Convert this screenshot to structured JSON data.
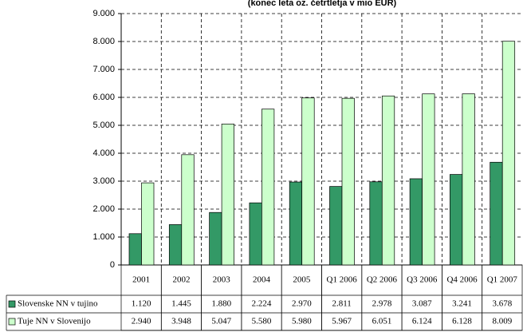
{
  "chart_data": {
    "type": "bar",
    "subtitle": "(konec leta oz. četrtletja v mio EUR)",
    "categories": [
      "2001",
      "2002",
      "2003",
      "2004",
      "2005",
      "Q1 2006",
      "Q2 2006",
      "Q3 2006",
      "Q4 2006",
      "Q1 2007"
    ],
    "series": [
      {
        "name": "Slovenske NN v tujino",
        "color": "#339966",
        "values": [
          1120,
          1445,
          1880,
          2224,
          2970,
          2811,
          2978,
          3087,
          3241,
          3678
        ],
        "value_labels": [
          "1.120",
          "1.445",
          "1.880",
          "2.224",
          "2.970",
          "2.811",
          "2.978",
          "3.087",
          "3.241",
          "3.678"
        ]
      },
      {
        "name": "Tuje NN v Slovenijo",
        "color": "#ccffcc",
        "values": [
          2940,
          3948,
          5047,
          5580,
          5980,
          5967,
          6051,
          6124,
          6128,
          8009
        ],
        "value_labels": [
          "2.940",
          "3.948",
          "5.047",
          "5.580",
          "5.980",
          "5.967",
          "6.051",
          "6.124",
          "6.128",
          "8.009"
        ]
      }
    ],
    "ylim": [
      0,
      9000
    ],
    "yticks": [
      0,
      {
        "value": 1000,
        "label": "1.000"
      },
      {
        "value": 2000,
        "label": "2.000"
      },
      {
        "value": 3000,
        "label": "3.000"
      },
      {
        "value": 4000,
        "label": "4.000"
      },
      {
        "value": 5000,
        "label": "5.000"
      },
      {
        "value": 6000,
        "label": "6.000"
      },
      {
        "value": 7000,
        "label": "7.000"
      },
      {
        "value": 8000,
        "label": "8.000"
      },
      {
        "value": 9000,
        "label": "9.000"
      }
    ],
    "grid": true
  }
}
